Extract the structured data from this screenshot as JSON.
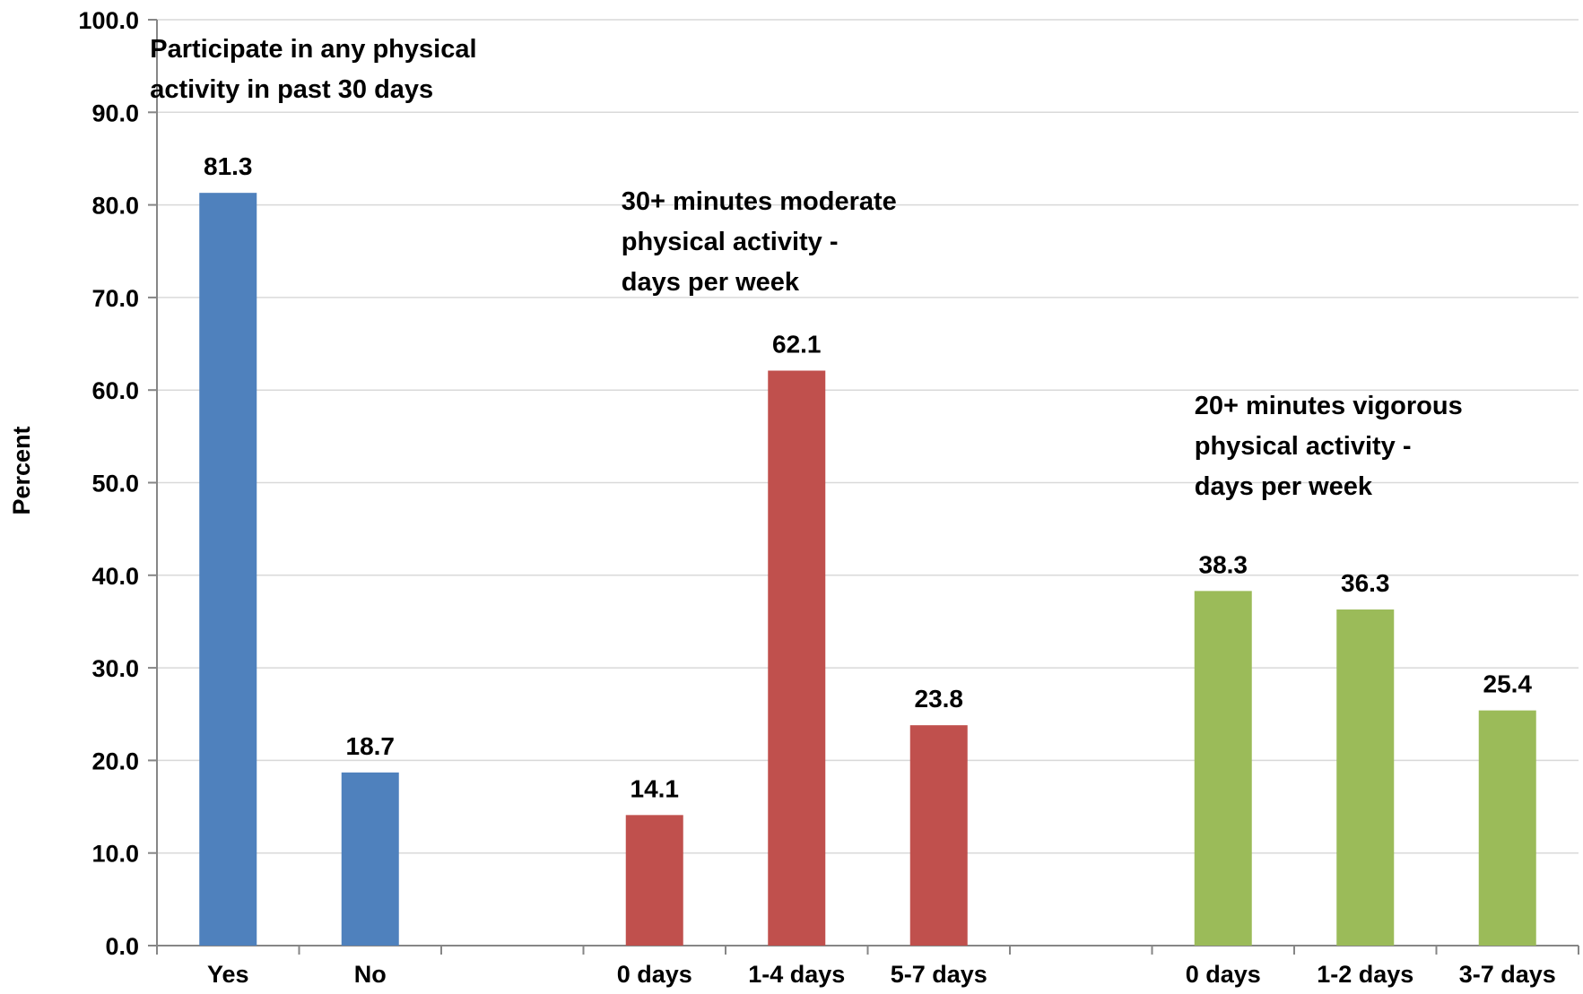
{
  "chart_data": {
    "type": "bar",
    "ylabel": "Percent",
    "ylim": [
      0,
      100
    ],
    "ytick_step": 10,
    "ytick_labels": [
      "0.0",
      "10.0",
      "20.0",
      "30.0",
      "40.0",
      "50.0",
      "60.0",
      "70.0",
      "80.0",
      "90.0",
      "100.0"
    ],
    "grid": true,
    "slots": 10,
    "groups": [
      {
        "annotation_lines": [
          "Participate in any physical",
          "activity in past 30 days"
        ],
        "color": "#4f81bd",
        "start_slot": 0,
        "bars": [
          {
            "category": "Yes",
            "value": 81.3,
            "label": "81.3"
          },
          {
            "category": "No",
            "value": 18.7,
            "label": "18.7"
          }
        ]
      },
      {
        "annotation_lines": [
          "30+ minutes moderate",
          "physical activity -",
          "days per week"
        ],
        "color": "#c0504d",
        "start_slot": 3,
        "bars": [
          {
            "category": "0 days",
            "value": 14.1,
            "label": "14.1"
          },
          {
            "category": "1-4 days",
            "value": 62.1,
            "label": "62.1"
          },
          {
            "category": "5-7 days",
            "value": 23.8,
            "label": "23.8"
          }
        ]
      },
      {
        "annotation_lines": [
          "20+ minutes vigorous",
          "physical activity -",
          "days per week"
        ],
        "color": "#9bbb59",
        "start_slot": 7,
        "bars": [
          {
            "category": "0 days",
            "value": 38.3,
            "label": "38.3"
          },
          {
            "category": "1-2 days",
            "value": 36.3,
            "label": "36.3"
          },
          {
            "category": "3-7 days",
            "value": 25.4,
            "label": "25.4"
          }
        ]
      }
    ]
  }
}
